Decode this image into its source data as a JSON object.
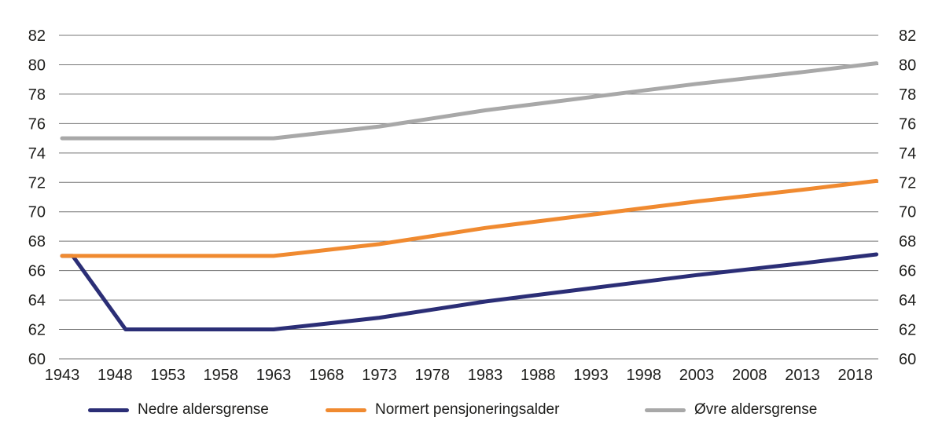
{
  "chart_data": {
    "type": "line",
    "title": "",
    "xlabel": "",
    "ylabel": "",
    "grid": "horizontal",
    "legend_position": "bottom",
    "x_axis": {
      "ticks": [
        1943,
        1948,
        1953,
        1958,
        1963,
        1968,
        1973,
        1978,
        1983,
        1988,
        1993,
        1998,
        2003,
        2008,
        2013,
        2018
      ]
    },
    "y_axis": {
      "min": 60,
      "max": 82,
      "sides": "both",
      "ticks": [
        60,
        62,
        64,
        66,
        68,
        70,
        72,
        74,
        76,
        78,
        80,
        82
      ]
    },
    "x": [
      1943,
      1944,
      1949,
      1963,
      1968,
      1973,
      1978,
      1983,
      1988,
      1993,
      1998,
      2003,
      2008,
      2013,
      2020
    ],
    "series": [
      {
        "name": "Nedre aldersgrense",
        "color": "#2B2E76",
        "values": [
          67,
          67,
          62,
          62,
          62.4,
          62.8,
          63.35,
          63.9,
          64.35,
          64.8,
          65.25,
          65.7,
          66.1,
          66.5,
          67.1
        ]
      },
      {
        "name": "Normert pensjoneringsalder",
        "color": "#F08A30",
        "values": [
          67,
          67,
          67,
          67,
          67.4,
          67.8,
          68.35,
          68.9,
          69.35,
          69.8,
          70.25,
          70.7,
          71.1,
          71.5,
          72.1
        ]
      },
      {
        "name": "Øvre aldersgrense",
        "color": "#A8A8A8",
        "values": [
          75,
          75,
          75,
          75,
          75.4,
          75.8,
          76.35,
          76.9,
          77.35,
          77.8,
          78.25,
          78.7,
          79.1,
          79.5,
          80.1
        ]
      }
    ],
    "colors": {
      "gridline": "#757575",
      "text": "#1d1d1b",
      "background": "#ffffff"
    }
  }
}
